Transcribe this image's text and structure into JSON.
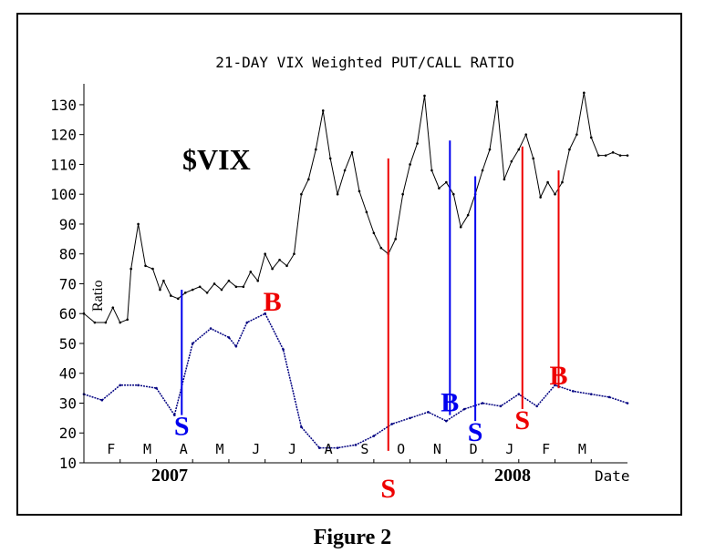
{
  "caption": "Figure 2",
  "chart_data": {
    "type": "line",
    "title": "21-DAY VIX Weighted PUT/CALL RATIO",
    "ylabel": "Ratio",
    "xlabel": "Date",
    "ylim": [
      10,
      137
    ],
    "y_ticks": [
      10,
      20,
      30,
      40,
      50,
      60,
      70,
      80,
      90,
      100,
      110,
      120,
      130
    ],
    "month_ticks": [
      "F",
      "M",
      "A",
      "M",
      "J",
      "J",
      "A",
      "S",
      "O",
      "N",
      "D",
      "J",
      "F",
      "M"
    ],
    "year_labels": [
      "2007",
      "2008"
    ],
    "symbol_label": "$VIX",
    "colors": {
      "vix": "#000000",
      "ratio": "#000080",
      "buy_sell_red": "#ee0000",
      "buy_sell_blue": "#0000ee"
    },
    "series": [
      {
        "name": "$VIX",
        "x": [
          0,
          0.3,
          0.6,
          0.8,
          1,
          1.2,
          1.3,
          1.5,
          1.7,
          1.9,
          2.1,
          2.2,
          2.4,
          2.6,
          2.8,
          3,
          3.2,
          3.4,
          3.6,
          3.8,
          4,
          4.2,
          4.4,
          4.6,
          4.8,
          5,
          5.2,
          5.4,
          5.6,
          5.8,
          6,
          6.2,
          6.4,
          6.6,
          6.8,
          7,
          7.2,
          7.4,
          7.6,
          7.8,
          8,
          8.2,
          8.4,
          8.6,
          8.8,
          9,
          9.2,
          9.4,
          9.6,
          9.8,
          10,
          10.2,
          10.4,
          10.6,
          10.8,
          11,
          11.2,
          11.4,
          11.6,
          11.8,
          12,
          12.2,
          12.4,
          12.6,
          12.8,
          13,
          13.2,
          13.4,
          13.6,
          13.8,
          14,
          14.2,
          14.4,
          14.6,
          14.8,
          15
        ],
        "values": [
          60,
          57,
          57,
          62,
          57,
          58,
          75,
          90,
          76,
          75,
          68,
          71,
          66,
          65,
          67,
          68,
          69,
          67,
          70,
          68,
          71,
          69,
          69,
          74,
          71,
          80,
          75,
          78,
          76,
          80,
          100,
          105,
          115,
          128,
          112,
          100,
          108,
          114,
          101,
          94,
          87,
          82,
          80,
          85,
          100,
          110,
          117,
          133,
          108,
          102,
          104,
          100,
          89,
          93,
          100,
          108,
          115,
          131,
          105,
          111,
          115,
          120,
          112,
          99,
          104,
          100,
          104,
          115,
          120,
          134,
          119,
          113,
          113,
          114,
          113,
          113
        ]
      },
      {
        "name": "",
        "x": [
          0,
          0.5,
          1,
          1.5,
          2,
          2.5,
          3,
          3.5,
          4,
          4.2,
          4.5,
          5,
          5.5,
          6,
          6.5,
          7,
          7.5,
          8,
          8.5,
          9,
          9.5,
          10,
          10.5,
          11,
          11.5,
          12,
          12.5,
          13,
          13.5,
          14,
          14.5,
          15
        ],
        "values": [
          33,
          31,
          36,
          36,
          35,
          26,
          50,
          55,
          52,
          49,
          57,
          60,
          48,
          22,
          15,
          15,
          16,
          19,
          23,
          25,
          27,
          24,
          28,
          30,
          29,
          33,
          29,
          36,
          34,
          33,
          32,
          30
        ]
      }
    ],
    "signals": [
      {
        "label": "S",
        "x": 2.7,
        "y_low": 26,
        "y_high": 68,
        "color": "blue",
        "text_pos": "below"
      },
      {
        "label": "B",
        "x": 5.2,
        "color": "red",
        "text_pos": "above",
        "y_text": 64
      },
      {
        "label": "S",
        "x": 8.4,
        "y_low": 14,
        "y_high": 112,
        "color": "red",
        "text_pos": "below"
      },
      {
        "label": "B",
        "x": 10.1,
        "y_low": 26,
        "y_high": 118,
        "color": "blue",
        "text_pos": "above"
      },
      {
        "label": "S",
        "x": 10.8,
        "y_low": 24,
        "y_high": 106,
        "color": "blue",
        "text_pos": "below"
      },
      {
        "label": "S",
        "x": 12.1,
        "y_low": 28,
        "y_high": 116,
        "color": "red",
        "text_pos": "below"
      },
      {
        "label": "B",
        "x": 13.1,
        "y_low": 35,
        "y_high": 108,
        "color": "red",
        "text_pos": "above"
      }
    ]
  }
}
